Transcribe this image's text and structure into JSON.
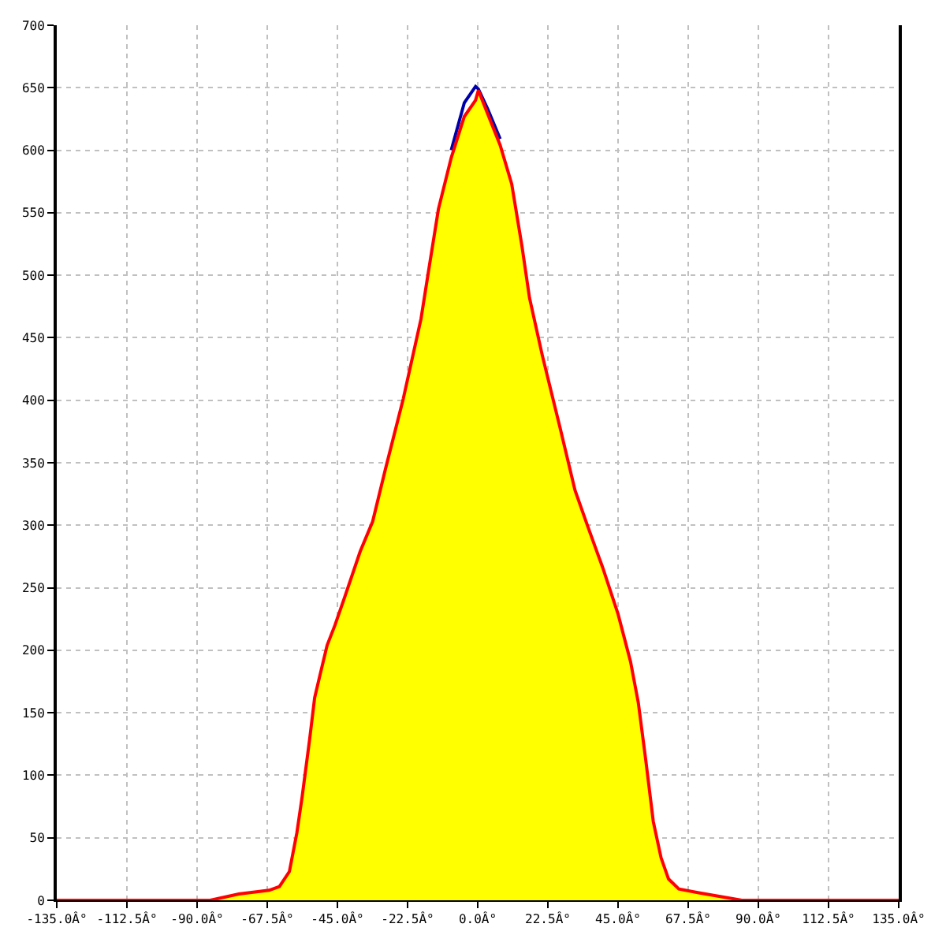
{
  "chart_data": {
    "type": "area",
    "x": [
      -135,
      -85.8,
      -76.6,
      -66.9,
      -63.6,
      -60.4,
      -58,
      -56.3,
      -53.9,
      -52.3,
      -50.7,
      -48.3,
      -45.8,
      -42.6,
      -37.7,
      -33.7,
      -29.6,
      -23.9,
      -18.2,
      -15.8,
      -12.6,
      -8.5,
      -4.3,
      -0.7,
      0.2,
      3.2,
      7.2,
      10.9,
      14.2,
      16.6,
      20.7,
      26.4,
      31.2,
      35.3,
      40.1,
      45,
      49,
      51.5,
      53.9,
      56.3,
      58.8,
      61.2,
      64.5,
      70.9,
      84.7,
      135
    ],
    "series": [
      {
        "type": "line",
        "color": "#0000aa",
        "values": [
          null,
          null,
          null,
          null,
          null,
          null,
          null,
          null,
          null,
          null,
          null,
          null,
          null,
          null,
          null,
          null,
          null,
          null,
          null,
          null,
          null,
          600,
          638,
          651,
          649,
          633,
          609,
          null,
          null,
          null,
          null,
          null,
          null,
          null,
          null,
          null,
          null,
          null,
          null,
          null,
          null,
          null,
          null,
          null,
          null,
          null
        ]
      },
      {
        "color": "#ffff00",
        "values": [
          0,
          0,
          5,
          8,
          11,
          23,
          54,
          83,
          129,
          162,
          179,
          204,
          220,
          243,
          279,
          303,
          345,
          401,
          465,
          503,
          553,
          594,
          627,
          640,
          648,
          629,
          604,
          573,
          523,
          482,
          436,
          378,
          328,
          299,
          266,
          229,
          191,
          158,
          112,
          63,
          34,
          17,
          9,
          6,
          0,
          0
        ]
      }
    ],
    "xlim": [
      -135,
      135
    ],
    "xticks": [
      {
        "value": -135,
        "label": "-135.0Â°"
      },
      {
        "value": -112.5,
        "label": "-112.5Â°"
      },
      {
        "value": -90,
        "label": "-90.0Â°"
      },
      {
        "value": -67.5,
        "label": "-67.5Â°"
      },
      {
        "value": -45,
        "label": "-45.0Â°"
      },
      {
        "value": -22.5,
        "label": "-22.5Â°"
      },
      {
        "value": 0,
        "label": "0.0Â°"
      },
      {
        "value": 22.5,
        "label": "22.5Â°"
      },
      {
        "value": 45,
        "label": "45.0Â°"
      },
      {
        "value": 67.5,
        "label": "67.5Â°"
      },
      {
        "value": 90,
        "label": "90.0Â°"
      },
      {
        "value": 112.5,
        "label": "112.5Â°"
      },
      {
        "value": 135,
        "label": "135.0Â°"
      }
    ],
    "ylim": [
      0,
      700
    ],
    "yticks": [
      0,
      50,
      100,
      150,
      200,
      250,
      300,
      350,
      400,
      450,
      500,
      550,
      600,
      650,
      700
    ],
    "grid": true
  }
}
